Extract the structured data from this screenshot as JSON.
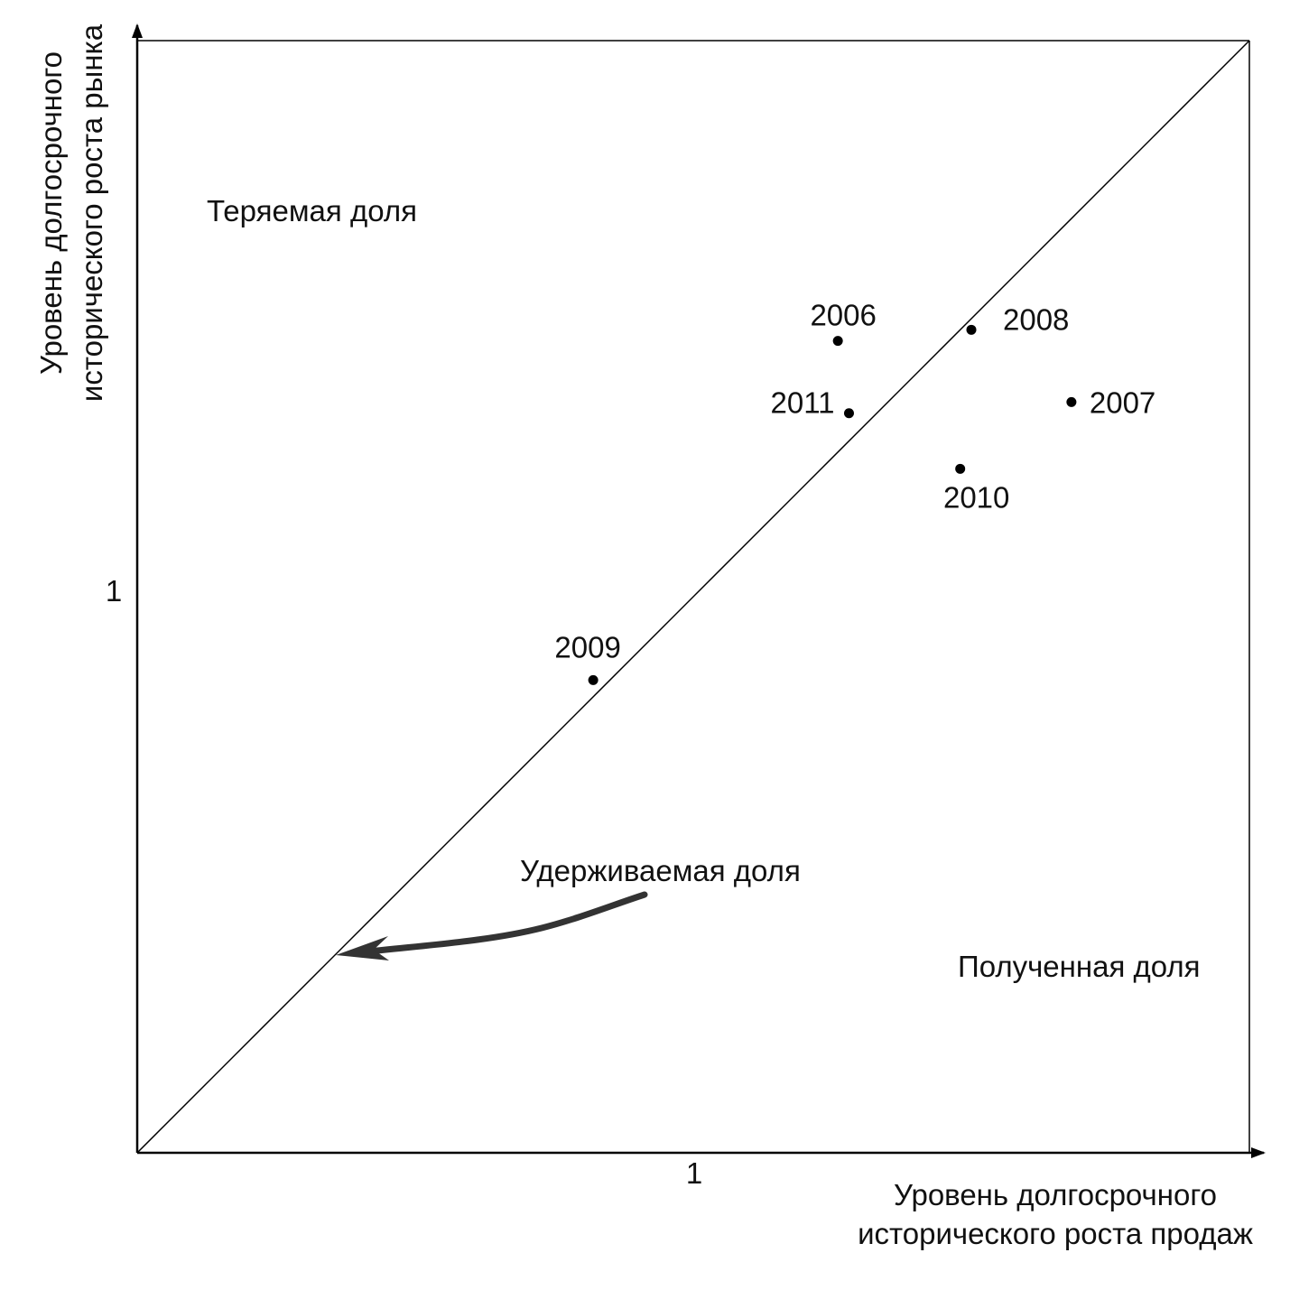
{
  "chart_data": {
    "type": "scatter",
    "x_axis": {
      "label_lines": [
        "Уровень долгосрочного",
        "исторического роста продаж"
      ],
      "tick_label": "1",
      "tick_value": 1
    },
    "y_axis": {
      "label_lines": [
        "Уровень долгосрочного",
        "исторического роста рынка"
      ],
      "tick_label": "1",
      "tick_value": 1
    },
    "domain": [
      0,
      2.0
    ],
    "diagonal": true,
    "grid": false,
    "points": [
      {
        "label": "2006",
        "x": 1.26,
        "y": 1.46
      },
      {
        "label": "2007",
        "x": 1.68,
        "y": 1.35
      },
      {
        "label": "2008",
        "x": 1.5,
        "y": 1.48
      },
      {
        "label": "2009",
        "x": 0.82,
        "y": 0.85
      },
      {
        "label": "2010",
        "x": 1.48,
        "y": 1.23
      },
      {
        "label": "2011",
        "x": 1.28,
        "y": 1.33
      }
    ],
    "regions": {
      "upper_left": "Теряемая доля",
      "diagonal": "Удерживаемая доля",
      "lower_right": "Полученная доля"
    }
  }
}
